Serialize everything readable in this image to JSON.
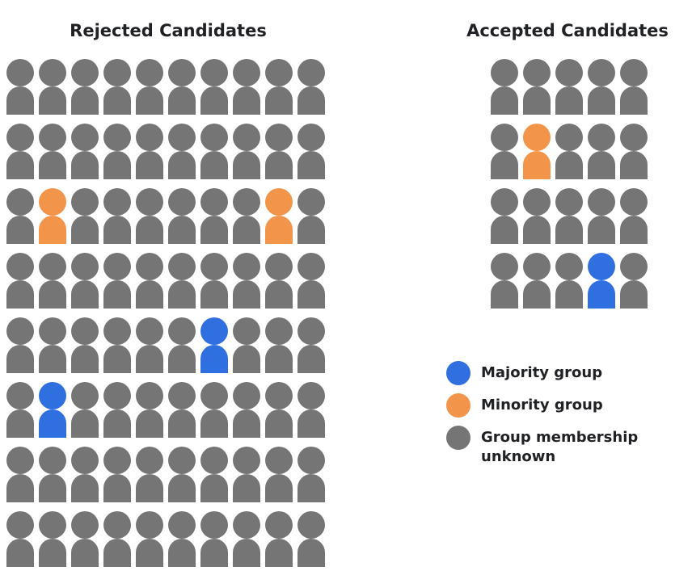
{
  "rejected": {
    "title": "Rejected Candidates",
    "grid": [
      [
        2,
        2,
        2,
        2,
        2,
        2,
        2,
        2,
        2,
        2
      ],
      [
        2,
        2,
        2,
        2,
        2,
        2,
        2,
        2,
        2,
        2
      ],
      [
        2,
        1,
        2,
        2,
        2,
        2,
        2,
        2,
        1,
        2
      ],
      [
        2,
        2,
        2,
        2,
        2,
        2,
        2,
        2,
        2,
        2
      ],
      [
        2,
        2,
        2,
        2,
        2,
        2,
        0,
        2,
        2,
        2
      ],
      [
        2,
        0,
        2,
        2,
        2,
        2,
        2,
        2,
        2,
        2
      ],
      [
        2,
        2,
        2,
        2,
        2,
        2,
        2,
        2,
        2,
        2
      ],
      [
        2,
        2,
        2,
        2,
        2,
        2,
        2,
        2,
        2,
        2
      ]
    ]
  },
  "accepted": {
    "title": "Accepted Candidates",
    "grid": [
      [
        2,
        2,
        2,
        2,
        2
      ],
      [
        2,
        1,
        2,
        2,
        2
      ],
      [
        2,
        2,
        2,
        2,
        2
      ],
      [
        2,
        2,
        2,
        0,
        2
      ]
    ]
  },
  "legend": [
    {
      "label": "Majority group",
      "color": "#2f6fe0"
    },
    {
      "label": "Minority group",
      "color": "#f2954a"
    },
    {
      "label": "Group membership unknown",
      "color": "#757575"
    }
  ]
}
